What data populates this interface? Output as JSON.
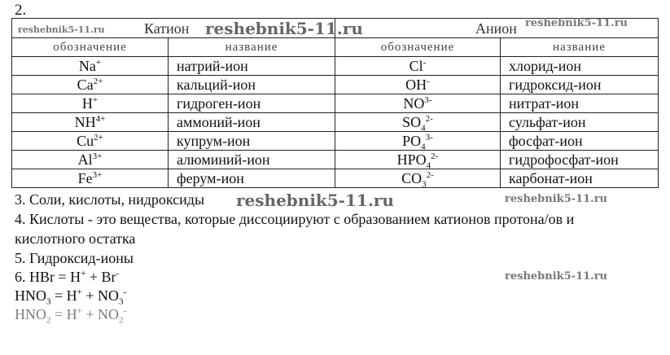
{
  "task2_label": "2.",
  "table": {
    "cation_header": "Катион",
    "anion_header": "Анион",
    "subheaders": [
      "обозначение",
      "название",
      "обозначение",
      "название"
    ],
    "rows": [
      {
        "cation": {
          "base": "Na",
          "sub": "",
          "sup": "+"
        },
        "cation_name": "натрий-ион",
        "anion": {
          "base": "Cl",
          "sub": "",
          "sup": "-"
        },
        "anion_name": "хлорид-ион"
      },
      {
        "cation": {
          "base": "Ca",
          "sub": "",
          "sup": "2+"
        },
        "cation_name": "кальций-ион",
        "anion": {
          "base": "OH",
          "sub": "",
          "sup": "-"
        },
        "anion_name": "гидроксид-ион"
      },
      {
        "cation": {
          "base": "H",
          "sub": "",
          "sup": "+"
        },
        "cation_name": "гидроген-ион",
        "anion": {
          "base": "NO",
          "sub": "",
          "sup": "3-"
        },
        "anion_name": "нитрат-ион"
      },
      {
        "cation": {
          "base": "NH",
          "sub": "",
          "sup": "4+"
        },
        "cation_name": "аммоний-ион",
        "anion": {
          "base": "SO",
          "sub": "4",
          "sup": "2-"
        },
        "anion_name": "сульфат-ион"
      },
      {
        "cation": {
          "base": "Cu",
          "sub": "",
          "sup": "2+"
        },
        "cation_name": "купрум-ион",
        "anion": {
          "base": "PO",
          "sub": "4",
          "sup": "3-"
        },
        "anion_name": "фосфат-ион"
      },
      {
        "cation": {
          "base": "Al",
          "sub": "",
          "sup": "3+"
        },
        "cation_name": "алюминий-ион",
        "anion": {
          "base": "HPO",
          "sub": "4",
          "sup": "2-"
        },
        "anion_name": "гидрофосфат-ион"
      },
      {
        "cation": {
          "base": "Fe",
          "sub": "",
          "sup": "3+"
        },
        "cation_name": "ферум-ион",
        "anion": {
          "base": "CO",
          "sub": "3",
          "sup": "2-"
        },
        "anion_name": "карбонат-ион"
      }
    ]
  },
  "lines": {
    "l3": "3. Соли, кислоты, нидроксиды",
    "l4a": "4. Кислоты - это вещества, которые диссоциируют с образованием катионов протона/ов и",
    "l4b": "кислотного остатка",
    "l5": "5. Гидроксид-ионы",
    "eq1": {
      "lhs": "6. HBr = H",
      "sup1": "+",
      "mid": " + Br",
      "sup2": "-"
    },
    "eq2": {
      "lhs": "HNO",
      "sub1": "3",
      "eqh": " =  H",
      "sup1": "+",
      "mid": " + NO",
      "sub2": "3",
      "sup2": "-"
    },
    "eq3": {
      "lhs": "HNO",
      "sub1": "2",
      "eqh": " =  H",
      "sup1": "+",
      "mid": " + NO",
      "sub2": "2",
      "sup2": "-"
    }
  },
  "watermark": "reshebnik5-11.ru"
}
